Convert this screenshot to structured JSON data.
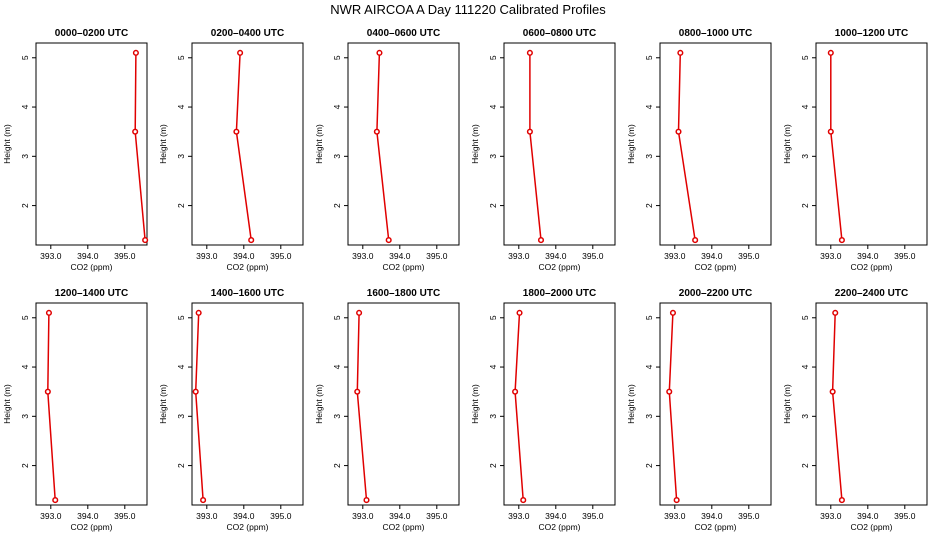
{
  "figure": {
    "title": "NWR AIRCOA A  Day 111220  Calibrated Profiles"
  },
  "colors": {
    "series": "#e00000",
    "axis": "#000000",
    "background": "#ffffff"
  },
  "chart_data": [
    {
      "type": "line",
      "title": "0000–0200 UTC",
      "xlabel": "CO2 (ppm)",
      "ylabel": "Height (m)",
      "xlim": [
        392.6,
        395.6
      ],
      "ylim": [
        1.2,
        5.3
      ],
      "xticks": [
        "393.0",
        "394.0",
        "395.0"
      ],
      "yticks": [
        "2",
        "3",
        "4",
        "5"
      ],
      "grid": false,
      "series": [
        {
          "x": [
            395.3,
            395.28,
            395.55
          ],
          "y": [
            5.1,
            3.5,
            1.3
          ]
        }
      ]
    },
    {
      "type": "line",
      "title": "0200–0400 UTC",
      "xlabel": "CO2 (ppm)",
      "ylabel": "Height (m)",
      "xlim": [
        392.6,
        395.6
      ],
      "ylim": [
        1.2,
        5.3
      ],
      "xticks": [
        "393.0",
        "394.0",
        "395.0"
      ],
      "yticks": [
        "2",
        "3",
        "4",
        "5"
      ],
      "grid": false,
      "series": [
        {
          "x": [
            393.9,
            393.8,
            394.2
          ],
          "y": [
            5.1,
            3.5,
            1.3
          ]
        }
      ]
    },
    {
      "type": "line",
      "title": "0400–0600 UTC",
      "xlabel": "CO2 (ppm)",
      "ylabel": "Height (m)",
      "xlim": [
        392.6,
        395.6
      ],
      "ylim": [
        1.2,
        5.3
      ],
      "xticks": [
        "393.0",
        "394.0",
        "395.0"
      ],
      "yticks": [
        "2",
        "3",
        "4",
        "5"
      ],
      "grid": false,
      "series": [
        {
          "x": [
            393.45,
            393.38,
            393.7
          ],
          "y": [
            5.1,
            3.5,
            1.3
          ]
        }
      ]
    },
    {
      "type": "line",
      "title": "0600–0800 UTC",
      "xlabel": "CO2 (ppm)",
      "ylabel": "Height (m)",
      "xlim": [
        392.6,
        395.6
      ],
      "ylim": [
        1.2,
        5.3
      ],
      "xticks": [
        "393.0",
        "394.0",
        "395.0"
      ],
      "yticks": [
        "2",
        "3",
        "4",
        "5"
      ],
      "grid": false,
      "series": [
        {
          "x": [
            393.3,
            393.3,
            393.6
          ],
          "y": [
            5.1,
            3.5,
            1.3
          ]
        }
      ]
    },
    {
      "type": "line",
      "title": "0800–1000 UTC",
      "xlabel": "CO2 (ppm)",
      "ylabel": "Height (m)",
      "xlim": [
        392.6,
        395.6
      ],
      "ylim": [
        1.2,
        5.3
      ],
      "xticks": [
        "393.0",
        "394.0",
        "395.0"
      ],
      "yticks": [
        "2",
        "3",
        "4",
        "5"
      ],
      "grid": false,
      "series": [
        {
          "x": [
            393.15,
            393.1,
            393.55
          ],
          "y": [
            5.1,
            3.5,
            1.3
          ]
        }
      ]
    },
    {
      "type": "line",
      "title": "1000–1200 UTC",
      "xlabel": "CO2 (ppm)",
      "ylabel": "Height (m)",
      "xlim": [
        392.6,
        395.6
      ],
      "ylim": [
        1.2,
        5.3
      ],
      "xticks": [
        "393.0",
        "394.0",
        "395.0"
      ],
      "yticks": [
        "2",
        "3",
        "4",
        "5"
      ],
      "grid": false,
      "series": [
        {
          "x": [
            393.0,
            393.0,
            393.3
          ],
          "y": [
            5.1,
            3.5,
            1.3
          ]
        }
      ]
    },
    {
      "type": "line",
      "title": "1200–1400 UTC",
      "xlabel": "CO2 (ppm)",
      "ylabel": "Height (m)",
      "xlim": [
        392.6,
        395.6
      ],
      "ylim": [
        1.2,
        5.3
      ],
      "xticks": [
        "393.0",
        "394.0",
        "395.0"
      ],
      "yticks": [
        "2",
        "3",
        "4",
        "5"
      ],
      "grid": false,
      "series": [
        {
          "x": [
            392.95,
            392.92,
            393.12
          ],
          "y": [
            5.1,
            3.5,
            1.3
          ]
        }
      ]
    },
    {
      "type": "line",
      "title": "1400–1600 UTC",
      "xlabel": "CO2 (ppm)",
      "ylabel": "Height (m)",
      "xlim": [
        392.6,
        395.6
      ],
      "ylim": [
        1.2,
        5.3
      ],
      "xticks": [
        "393.0",
        "394.0",
        "395.0"
      ],
      "yticks": [
        "2",
        "3",
        "4",
        "5"
      ],
      "grid": false,
      "series": [
        {
          "x": [
            392.78,
            392.7,
            392.9
          ],
          "y": [
            5.1,
            3.5,
            1.3
          ]
        }
      ]
    },
    {
      "type": "line",
      "title": "1600–1800 UTC",
      "xlabel": "CO2 (ppm)",
      "ylabel": "Height (m)",
      "xlim": [
        392.6,
        395.6
      ],
      "ylim": [
        1.2,
        5.3
      ],
      "xticks": [
        "393.0",
        "394.0",
        "395.0"
      ],
      "yticks": [
        "2",
        "3",
        "4",
        "5"
      ],
      "grid": false,
      "series": [
        {
          "x": [
            392.9,
            392.85,
            393.1
          ],
          "y": [
            5.1,
            3.5,
            1.3
          ]
        }
      ]
    },
    {
      "type": "line",
      "title": "1800–2000 UTC",
      "xlabel": "CO2 (ppm)",
      "ylabel": "Height (m)",
      "xlim": [
        392.6,
        395.6
      ],
      "ylim": [
        1.2,
        5.3
      ],
      "xticks": [
        "393.0",
        "394.0",
        "395.0"
      ],
      "yticks": [
        "2",
        "3",
        "4",
        "5"
      ],
      "grid": false,
      "series": [
        {
          "x": [
            393.02,
            392.9,
            393.12
          ],
          "y": [
            5.1,
            3.5,
            1.3
          ]
        }
      ]
    },
    {
      "type": "line",
      "title": "2000–2200 UTC",
      "xlabel": "CO2 (ppm)",
      "ylabel": "Height (m)",
      "xlim": [
        392.6,
        395.6
      ],
      "ylim": [
        1.2,
        5.3
      ],
      "xticks": [
        "393.0",
        "394.0",
        "395.0"
      ],
      "yticks": [
        "2",
        "3",
        "4",
        "5"
      ],
      "grid": false,
      "series": [
        {
          "x": [
            392.95,
            392.85,
            393.05
          ],
          "y": [
            5.1,
            3.5,
            1.3
          ]
        }
      ]
    },
    {
      "type": "line",
      "title": "2200–2400 UTC",
      "xlabel": "CO2 (ppm)",
      "ylabel": "Height (m)",
      "xlim": [
        392.6,
        395.6
      ],
      "ylim": [
        1.2,
        5.3
      ],
      "xticks": [
        "393.0",
        "394.0",
        "395.0"
      ],
      "yticks": [
        "2",
        "3",
        "4",
        "5"
      ],
      "grid": false,
      "series": [
        {
          "x": [
            393.12,
            393.05,
            393.3
          ],
          "y": [
            5.1,
            3.5,
            1.3
          ]
        }
      ]
    }
  ]
}
